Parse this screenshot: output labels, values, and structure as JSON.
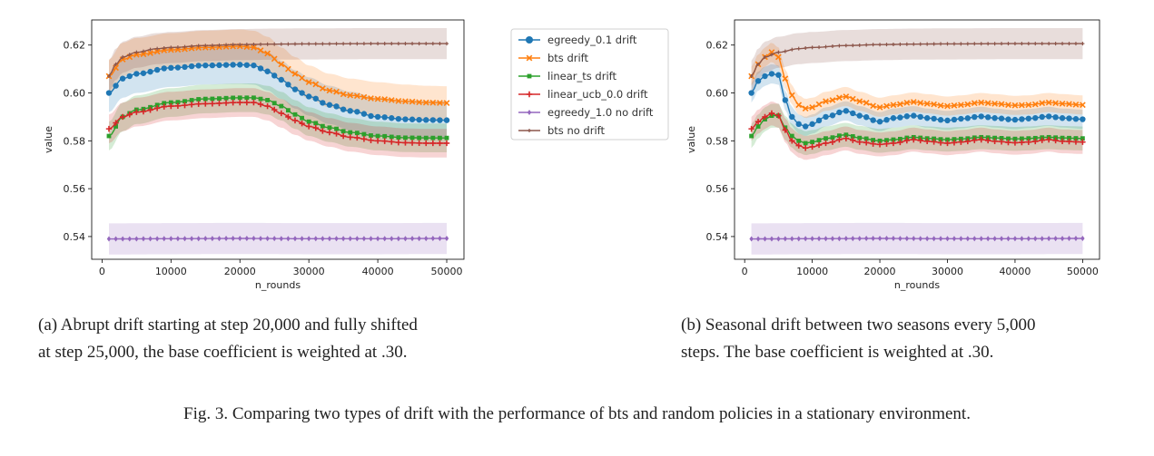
{
  "figure_caption": "Fig. 3.  Comparing two types of drift with the performance of bts and random policies in a stationary environment.",
  "panels": [
    {
      "caption_line1": "(a) Abrupt drift starting at step 20,000 and fully shifted",
      "caption_line2": "at step 25,000, the base coefficient is weighted at .30."
    },
    {
      "caption_line1": "(b) Seasonal drift between two seasons every 5,000",
      "caption_line2": "steps. The base coefficient is weighted at .30."
    }
  ],
  "legend_title_color": "#333333",
  "chart_data": [
    {
      "type": "line",
      "title": "",
      "xlabel": "n_rounds",
      "ylabel": "value",
      "xlim": [
        -1500,
        52500
      ],
      "ylim": [
        0.5305,
        0.6305
      ],
      "xticks": [
        0,
        10000,
        20000,
        30000,
        40000,
        50000
      ],
      "xtick_labels": [
        "0",
        "10000",
        "20000",
        "30000",
        "40000",
        "50000"
      ],
      "yticks": [
        0.54,
        0.56,
        0.58,
        0.6,
        0.62
      ],
      "ytick_labels": [
        "0.54",
        "0.56",
        "0.58",
        "0.60",
        "0.62"
      ],
      "grid": false,
      "legend": "none",
      "series": [
        {
          "name": "egreedy_0.1 drift",
          "color": "#1f77b4",
          "marker": "circle",
          "band": 0.008,
          "x": [
            1000,
            3000,
            5000,
            10000,
            15000,
            20000,
            22000,
            24000,
            26000,
            28000,
            30000,
            33000,
            36000,
            40000,
            44000,
            47000,
            50000
          ],
          "y": [
            0.6,
            0.606,
            0.608,
            0.6105,
            0.6115,
            0.6118,
            0.6115,
            0.609,
            0.6055,
            0.6015,
            0.5985,
            0.595,
            0.5925,
            0.59,
            0.589,
            0.5887,
            0.5886
          ]
        },
        {
          "name": "bts drift",
          "color": "#ff7f0e",
          "marker": "x",
          "band": 0.007,
          "x": [
            1000,
            3000,
            5000,
            10000,
            15000,
            20000,
            22000,
            24000,
            26000,
            28000,
            30000,
            33000,
            36000,
            40000,
            44000,
            47000,
            50000
          ],
          "y": [
            0.607,
            0.614,
            0.616,
            0.618,
            0.619,
            0.6195,
            0.619,
            0.6165,
            0.612,
            0.608,
            0.6045,
            0.601,
            0.599,
            0.5975,
            0.5965,
            0.596,
            0.5958
          ]
        },
        {
          "name": "linear_ts drift",
          "color": "#2ca02c",
          "marker": "square",
          "band": 0.006,
          "x": [
            1000,
            3000,
            5000,
            10000,
            15000,
            20000,
            22000,
            24000,
            26000,
            28000,
            30000,
            33000,
            36000,
            40000,
            44000,
            47000,
            50000
          ],
          "y": [
            0.582,
            0.59,
            0.593,
            0.596,
            0.5975,
            0.598,
            0.598,
            0.597,
            0.5945,
            0.591,
            0.588,
            0.5855,
            0.5835,
            0.582,
            0.5813,
            0.5812,
            0.5812
          ]
        },
        {
          "name": "linear_ucb_0.0 drift",
          "color": "#d62728",
          "marker": "plus",
          "band": 0.006,
          "x": [
            1000,
            3000,
            5000,
            10000,
            15000,
            20000,
            22000,
            24000,
            26000,
            28000,
            30000,
            33000,
            36000,
            40000,
            44000,
            47000,
            50000
          ],
          "y": [
            0.585,
            0.59,
            0.592,
            0.5945,
            0.5955,
            0.596,
            0.596,
            0.5945,
            0.5915,
            0.5885,
            0.586,
            0.5835,
            0.5815,
            0.58,
            0.5792,
            0.579,
            0.579
          ]
        },
        {
          "name": "egreedy_1.0 no drift",
          "color": "#9467bd",
          "marker": "diamond",
          "band": 0.0065,
          "x": [
            1000,
            10000,
            20000,
            30000,
            40000,
            50000
          ],
          "y": [
            0.539,
            0.5391,
            0.5392,
            0.5391,
            0.5391,
            0.5392
          ]
        },
        {
          "name": "bts no drift",
          "color": "#8c564b",
          "marker": "plus-small",
          "band": 0.0065,
          "x": [
            1000,
            2000,
            3000,
            5000,
            8000,
            10000,
            15000,
            20000,
            25000,
            30000,
            40000,
            50000
          ],
          "y": [
            0.607,
            0.612,
            0.615,
            0.617,
            0.6185,
            0.619,
            0.6198,
            0.6202,
            0.6204,
            0.6205,
            0.6206,
            0.6206
          ]
        }
      ]
    },
    {
      "type": "line",
      "title": "",
      "xlabel": "n_rounds",
      "ylabel": "value",
      "xlim": [
        -1500,
        52500
      ],
      "ylim": [
        0.5305,
        0.6305
      ],
      "xticks": [
        0,
        10000,
        20000,
        30000,
        40000,
        50000
      ],
      "xtick_labels": [
        "0",
        "10000",
        "20000",
        "30000",
        "40000",
        "50000"
      ],
      "yticks": [
        0.54,
        0.56,
        0.58,
        0.6,
        0.62
      ],
      "ytick_labels": [
        "0.54",
        "0.56",
        "0.58",
        "0.60",
        "0.62"
      ],
      "grid": false,
      "legend": "none",
      "series": [
        {
          "name": "egreedy_0.1 drift",
          "color": "#1f77b4",
          "marker": "circle",
          "band": 0.004,
          "x": [
            1000,
            2000,
            3000,
            4000,
            5000,
            6000,
            7000,
            8000,
            9000,
            10000,
            12000,
            15000,
            17000,
            20000,
            22000,
            25000,
            27000,
            30000,
            32000,
            35000,
            37000,
            40000,
            42000,
            45000,
            47000,
            50000
          ],
          "y": [
            0.6,
            0.605,
            0.607,
            0.608,
            0.6075,
            0.597,
            0.59,
            0.587,
            0.586,
            0.587,
            0.59,
            0.5925,
            0.5905,
            0.588,
            0.5895,
            0.5905,
            0.5895,
            0.5885,
            0.5892,
            0.5902,
            0.5895,
            0.5888,
            0.5893,
            0.5902,
            0.5895,
            0.589
          ]
        },
        {
          "name": "bts drift",
          "color": "#ff7f0e",
          "marker": "x",
          "band": 0.004,
          "x": [
            1000,
            2000,
            3000,
            4000,
            5000,
            6000,
            7000,
            8000,
            9000,
            10000,
            12000,
            15000,
            17000,
            20000,
            22000,
            25000,
            27000,
            30000,
            32000,
            35000,
            37000,
            40000,
            42000,
            45000,
            47000,
            50000
          ],
          "y": [
            0.607,
            0.612,
            0.615,
            0.617,
            0.615,
            0.606,
            0.599,
            0.595,
            0.5935,
            0.594,
            0.5965,
            0.5985,
            0.5965,
            0.594,
            0.595,
            0.5962,
            0.5955,
            0.5945,
            0.595,
            0.596,
            0.5955,
            0.5948,
            0.595,
            0.596,
            0.5955,
            0.595
          ]
        },
        {
          "name": "linear_ts drift",
          "color": "#2ca02c",
          "marker": "square",
          "band": 0.005,
          "x": [
            1000,
            2000,
            3000,
            4000,
            5000,
            6000,
            7000,
            8000,
            9000,
            10000,
            12000,
            15000,
            17000,
            20000,
            22000,
            25000,
            27000,
            30000,
            32000,
            35000,
            37000,
            40000,
            42000,
            45000,
            47000,
            50000
          ],
          "y": [
            0.582,
            0.586,
            0.589,
            0.5905,
            0.5905,
            0.5855,
            0.582,
            0.58,
            0.579,
            0.5795,
            0.581,
            0.5825,
            0.5812,
            0.58,
            0.5805,
            0.5815,
            0.581,
            0.5805,
            0.5808,
            0.5815,
            0.5812,
            0.5808,
            0.581,
            0.5815,
            0.5812,
            0.581
          ]
        },
        {
          "name": "linear_ucb_0.0 drift",
          "color": "#d62728",
          "marker": "plus",
          "band": 0.005,
          "x": [
            1000,
            2000,
            3000,
            4000,
            5000,
            6000,
            7000,
            8000,
            9000,
            10000,
            12000,
            15000,
            17000,
            20000,
            22000,
            25000,
            27000,
            30000,
            32000,
            35000,
            37000,
            40000,
            42000,
            45000,
            47000,
            50000
          ],
          "y": [
            0.585,
            0.588,
            0.59,
            0.5915,
            0.5905,
            0.5845,
            0.58,
            0.578,
            0.577,
            0.5775,
            0.579,
            0.581,
            0.5795,
            0.5785,
            0.579,
            0.5805,
            0.5798,
            0.579,
            0.5795,
            0.5805,
            0.5798,
            0.5792,
            0.5795,
            0.5805,
            0.5798,
            0.5795
          ]
        },
        {
          "name": "egreedy_1.0 no drift",
          "color": "#9467bd",
          "marker": "diamond",
          "band": 0.0065,
          "x": [
            1000,
            10000,
            20000,
            30000,
            40000,
            50000
          ],
          "y": [
            0.539,
            0.5391,
            0.5392,
            0.5391,
            0.5391,
            0.5392
          ]
        },
        {
          "name": "bts no drift",
          "color": "#8c564b",
          "marker": "plus-small",
          "band": 0.0065,
          "x": [
            1000,
            2000,
            3000,
            5000,
            8000,
            10000,
            15000,
            20000,
            25000,
            30000,
            40000,
            50000
          ],
          "y": [
            0.607,
            0.612,
            0.615,
            0.617,
            0.6185,
            0.619,
            0.6198,
            0.6202,
            0.6204,
            0.6205,
            0.6206,
            0.6206
          ]
        }
      ]
    }
  ]
}
